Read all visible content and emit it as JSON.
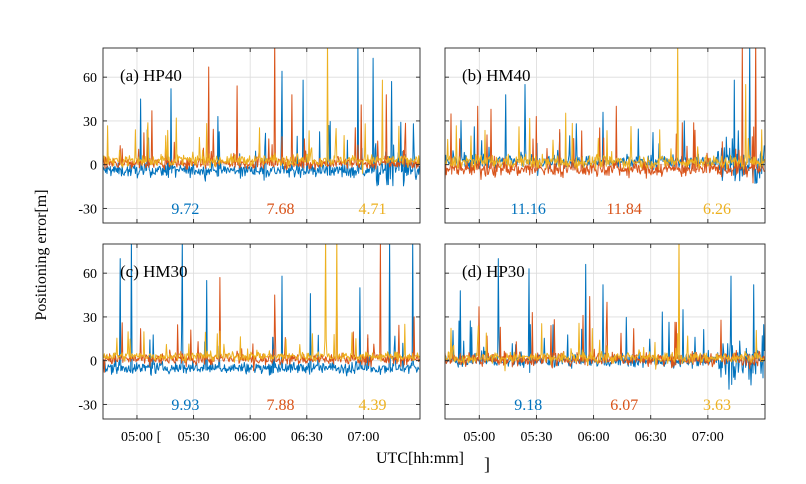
{
  "figure": {
    "ylabel": "Positioning error[m]",
    "xlabel": "UTC[hh:mm]",
    "stray_marks": [
      "[",
      "]"
    ]
  },
  "colors": {
    "series_1": "#0072BD",
    "series_2": "#D95319",
    "series_3": "#EDB120",
    "grid": "#dcdcdc",
    "axes": "#262626"
  },
  "chart_data": [
    {
      "type": "line",
      "panel_label": "(a) HP40",
      "ylim": [
        -40,
        80
      ],
      "yticks": [
        -30,
        0,
        30,
        60
      ],
      "ytick_labels": [
        "-30",
        "0",
        "30",
        "60"
      ],
      "xlim": [
        "04:42",
        "07:30"
      ],
      "xticks": [
        "05:00",
        "05:30",
        "06:00",
        "06:30",
        "07:00"
      ],
      "xtick_labels": [],
      "grid": true,
      "annotations": [
        "9.72",
        "7.68",
        "4.71"
      ],
      "series": [
        {
          "color": "#0072BD",
          "baseline": -4,
          "noise": 6,
          "spikes": [
            [
              "05:02",
              45
            ],
            [
              "05:18",
              52
            ],
            [
              "05:43",
              33
            ],
            [
              "06:17",
              64
            ],
            [
              "06:28",
              58
            ],
            [
              "06:57",
              84
            ],
            [
              "07:05",
              73
            ],
            [
              "07:15",
              57
            ]
          ]
        },
        {
          "color": "#D95319",
          "baseline": 1,
          "noise": 5,
          "spikes": [
            [
              "05:08",
              37
            ],
            [
              "05:38",
              67
            ],
            [
              "05:53",
              54
            ],
            [
              "06:13",
              88
            ],
            [
              "06:22",
              48
            ],
            [
              "06:59",
              41
            ],
            [
              "07:12",
              48
            ]
          ]
        },
        {
          "color": "#EDB120",
          "baseline": 3,
          "noise": 5,
          "spikes": [
            [
              "05:21",
              32
            ],
            [
              "06:41",
              88
            ],
            [
              "07:01",
              28
            ],
            [
              "07:10",
              58
            ]
          ]
        }
      ]
    },
    {
      "type": "line",
      "panel_label": "(b) HM40",
      "ylim": [
        -40,
        80
      ],
      "yticks": [
        -30,
        0,
        30,
        60
      ],
      "ytick_labels": [],
      "xlim": [
        "04:42",
        "07:30"
      ],
      "xticks": [
        "05:00",
        "05:30",
        "06:00",
        "06:30",
        "07:00"
      ],
      "xtick_labels": [],
      "grid": true,
      "annotations": [
        "11.16",
        "11.84",
        "6.26"
      ],
      "series": [
        {
          "color": "#0072BD",
          "baseline": 2,
          "noise": 6,
          "spikes": [
            [
              "05:14",
              48
            ],
            [
              "05:24",
              55
            ],
            [
              "05:51",
              28
            ],
            [
              "06:05",
              36
            ],
            [
              "07:14",
              58
            ],
            [
              "07:22",
              84
            ]
          ]
        },
        {
          "color": "#D95319",
          "baseline": -3,
          "noise": 7,
          "spikes": [
            [
              "04:59",
              40
            ],
            [
              "05:06",
              38
            ],
            [
              "05:30",
              33
            ],
            [
              "06:12",
              40
            ],
            [
              "07:18",
              84
            ],
            [
              "07:25",
              88
            ]
          ]
        },
        {
          "color": "#EDB120",
          "baseline": 2,
          "noise": 6,
          "spikes": [
            [
              "05:21",
              26
            ],
            [
              "06:44",
              88
            ],
            [
              "07:20",
              55
            ]
          ]
        }
      ]
    },
    {
      "type": "line",
      "panel_label": "(c) HM30",
      "ylim": [
        -40,
        80
      ],
      "yticks": [
        -30,
        0,
        30,
        60
      ],
      "ytick_labels": [
        "-30",
        "0",
        "30",
        "60"
      ],
      "xlim": [
        "04:42",
        "07:30"
      ],
      "xticks": [
        "05:00",
        "05:30",
        "06:00",
        "06:30",
        "07:00"
      ],
      "xtick_labels": [
        "05:00",
        "05:30",
        "06:00",
        "06:30",
        "07:00"
      ],
      "grid": true,
      "annotations": [
        "9.93",
        "7.88",
        "4.39"
      ],
      "series": [
        {
          "color": "#0072BD",
          "baseline": -5,
          "noise": 5,
          "spikes": [
            [
              "04:51",
              70
            ],
            [
              "04:57",
              84
            ],
            [
              "05:24",
              84
            ],
            [
              "05:37",
              55
            ],
            [
              "06:17",
              58
            ],
            [
              "06:32",
              46
            ],
            [
              "06:58",
              50
            ],
            [
              "07:14",
              84
            ],
            [
              "07:26",
              84
            ]
          ]
        },
        {
          "color": "#D95319",
          "baseline": 1,
          "noise": 5,
          "spikes": [
            [
              "04:52",
              26
            ],
            [
              "05:02",
              22
            ],
            [
              "05:44",
              57
            ],
            [
              "06:13",
              45
            ],
            [
              "06:46",
              57
            ],
            [
              "07:09",
              84
            ],
            [
              "07:27",
              30
            ]
          ]
        },
        {
          "color": "#EDB120",
          "baseline": 3,
          "noise": 4,
          "spikes": [
            [
              "06:40",
              88
            ],
            [
              "06:46",
              88
            ],
            [
              "07:22",
              25
            ]
          ]
        }
      ]
    },
    {
      "type": "line",
      "panel_label": "(d) HP30",
      "ylim": [
        -40,
        80
      ],
      "yticks": [
        -30,
        0,
        30,
        60
      ],
      "ytick_labels": [],
      "xlim": [
        "04:42",
        "07:30"
      ],
      "xticks": [
        "05:00",
        "05:30",
        "06:00",
        "06:30",
        "07:00"
      ],
      "xtick_labels": [
        "05:00",
        "05:30",
        "06:00",
        "06:30",
        "07:00"
      ],
      "grid": true,
      "annotations": [
        "9.18",
        "6.07",
        "3.63"
      ],
      "series": [
        {
          "color": "#0072BD",
          "baseline": 0,
          "noise": 6,
          "spikes": [
            [
              "04:50",
              48
            ],
            [
              "05:10",
              70
            ],
            [
              "05:26",
              63
            ],
            [
              "05:56",
              66
            ],
            [
              "06:05",
              52
            ],
            [
              "06:47",
              35
            ],
            [
              "07:12",
              58
            ],
            [
              "07:24",
              52
            ]
          ]
        },
        {
          "color": "#D95319",
          "baseline": 1,
          "noise": 6,
          "spikes": [
            [
              "05:00",
              37
            ],
            [
              "05:28",
              33
            ],
            [
              "05:58",
              44
            ],
            [
              "06:07",
              40
            ],
            [
              "06:21",
              22
            ]
          ]
        },
        {
          "color": "#EDB120",
          "baseline": 2,
          "noise": 5,
          "spikes": [
            [
              "06:45",
              88
            ]
          ]
        }
      ]
    }
  ]
}
